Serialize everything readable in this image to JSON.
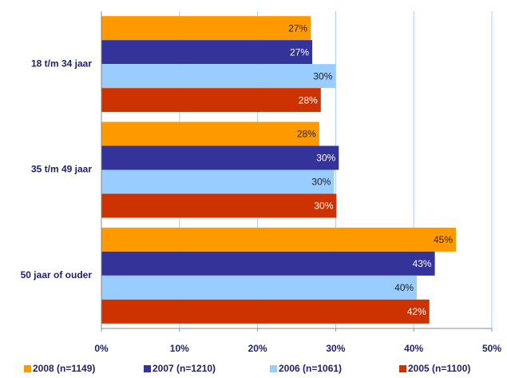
{
  "chart_data": {
    "type": "hbar",
    "categories": [
      "18 t/m 34 jaar",
      "35 t/m 49 jaar",
      "50 jaar of ouder"
    ],
    "series": [
      {
        "name": "2008 (n=1149)",
        "color": "#ff9900",
        "values": [
          26.8,
          27.9,
          45.4
        ],
        "value_labels": [
          "27%",
          "28%",
          "45%"
        ]
      },
      {
        "name": "2007 (n=1210)",
        "color": "#333399",
        "values": [
          27.0,
          30.4,
          42.7
        ],
        "value_labels": [
          "27%",
          "30%",
          "43%"
        ]
      },
      {
        "name": "2006 (n=1061)",
        "color": "#99ccff",
        "values": [
          30.0,
          29.8,
          40.4
        ],
        "value_labels": [
          "30%",
          "30%",
          "40%"
        ]
      },
      {
        "name": "2005 (n=1100)",
        "color": "#cc3300",
        "values": [
          28.1,
          30.1,
          42.0
        ],
        "value_labels": [
          "28%",
          "30%",
          "42%"
        ]
      }
    ],
    "xlim": [
      0,
      50
    ],
    "xticks": [
      {
        "value": 0,
        "label": "0%"
      },
      {
        "value": 10,
        "label": "10%"
      },
      {
        "value": 20,
        "label": "20%"
      },
      {
        "value": 30,
        "label": "30%"
      },
      {
        "value": 40,
        "label": "40%"
      },
      {
        "value": 50,
        "label": "50%"
      }
    ],
    "grid": true,
    "legend": "bottom"
  }
}
